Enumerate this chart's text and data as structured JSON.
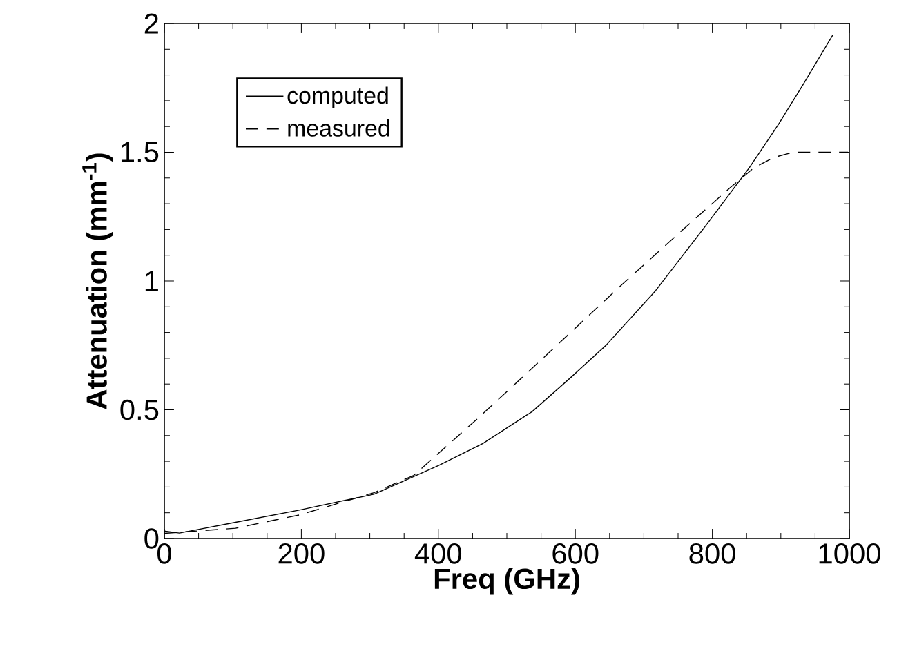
{
  "chart_data": {
    "type": "line",
    "xlabel": "Freq  (GHz)",
    "ylabel": "Attenuation (mm$^{-1}$)",
    "xlim": [
      0,
      1000
    ],
    "ylim": [
      0,
      2
    ],
    "xticks": [
      0,
      200,
      400,
      600,
      800,
      1000
    ],
    "yticks": [
      0,
      0.5,
      1,
      1.5,
      2
    ],
    "legend": "top left",
    "grid": false,
    "series": [
      {
        "name": "computed",
        "color": "#000000",
        "line_style": "solid",
        "x": [
          0,
          22,
          104,
          198,
          306,
          400,
          465,
          537,
          594,
          645,
          717,
          789,
          854,
          897,
          933,
          976
        ],
        "values": [
          0.029,
          0.021,
          0.063,
          0.111,
          0.172,
          0.283,
          0.369,
          0.493,
          0.627,
          0.751,
          0.962,
          1.21,
          1.44,
          1.61,
          1.765,
          1.956
        ]
      },
      {
        "name": "measured",
        "color": "#000000",
        "line_style": "dashed",
        "x": [
          0,
          104,
          198,
          306,
          364,
          457,
          558,
          666,
          753,
          825,
          861,
          890,
          918,
          998
        ],
        "values": [
          0.02,
          0.04,
          0.092,
          0.178,
          0.245,
          0.465,
          0.713,
          0.981,
          1.19,
          1.36,
          1.44,
          1.48,
          1.5,
          1.5
        ]
      }
    ]
  }
}
